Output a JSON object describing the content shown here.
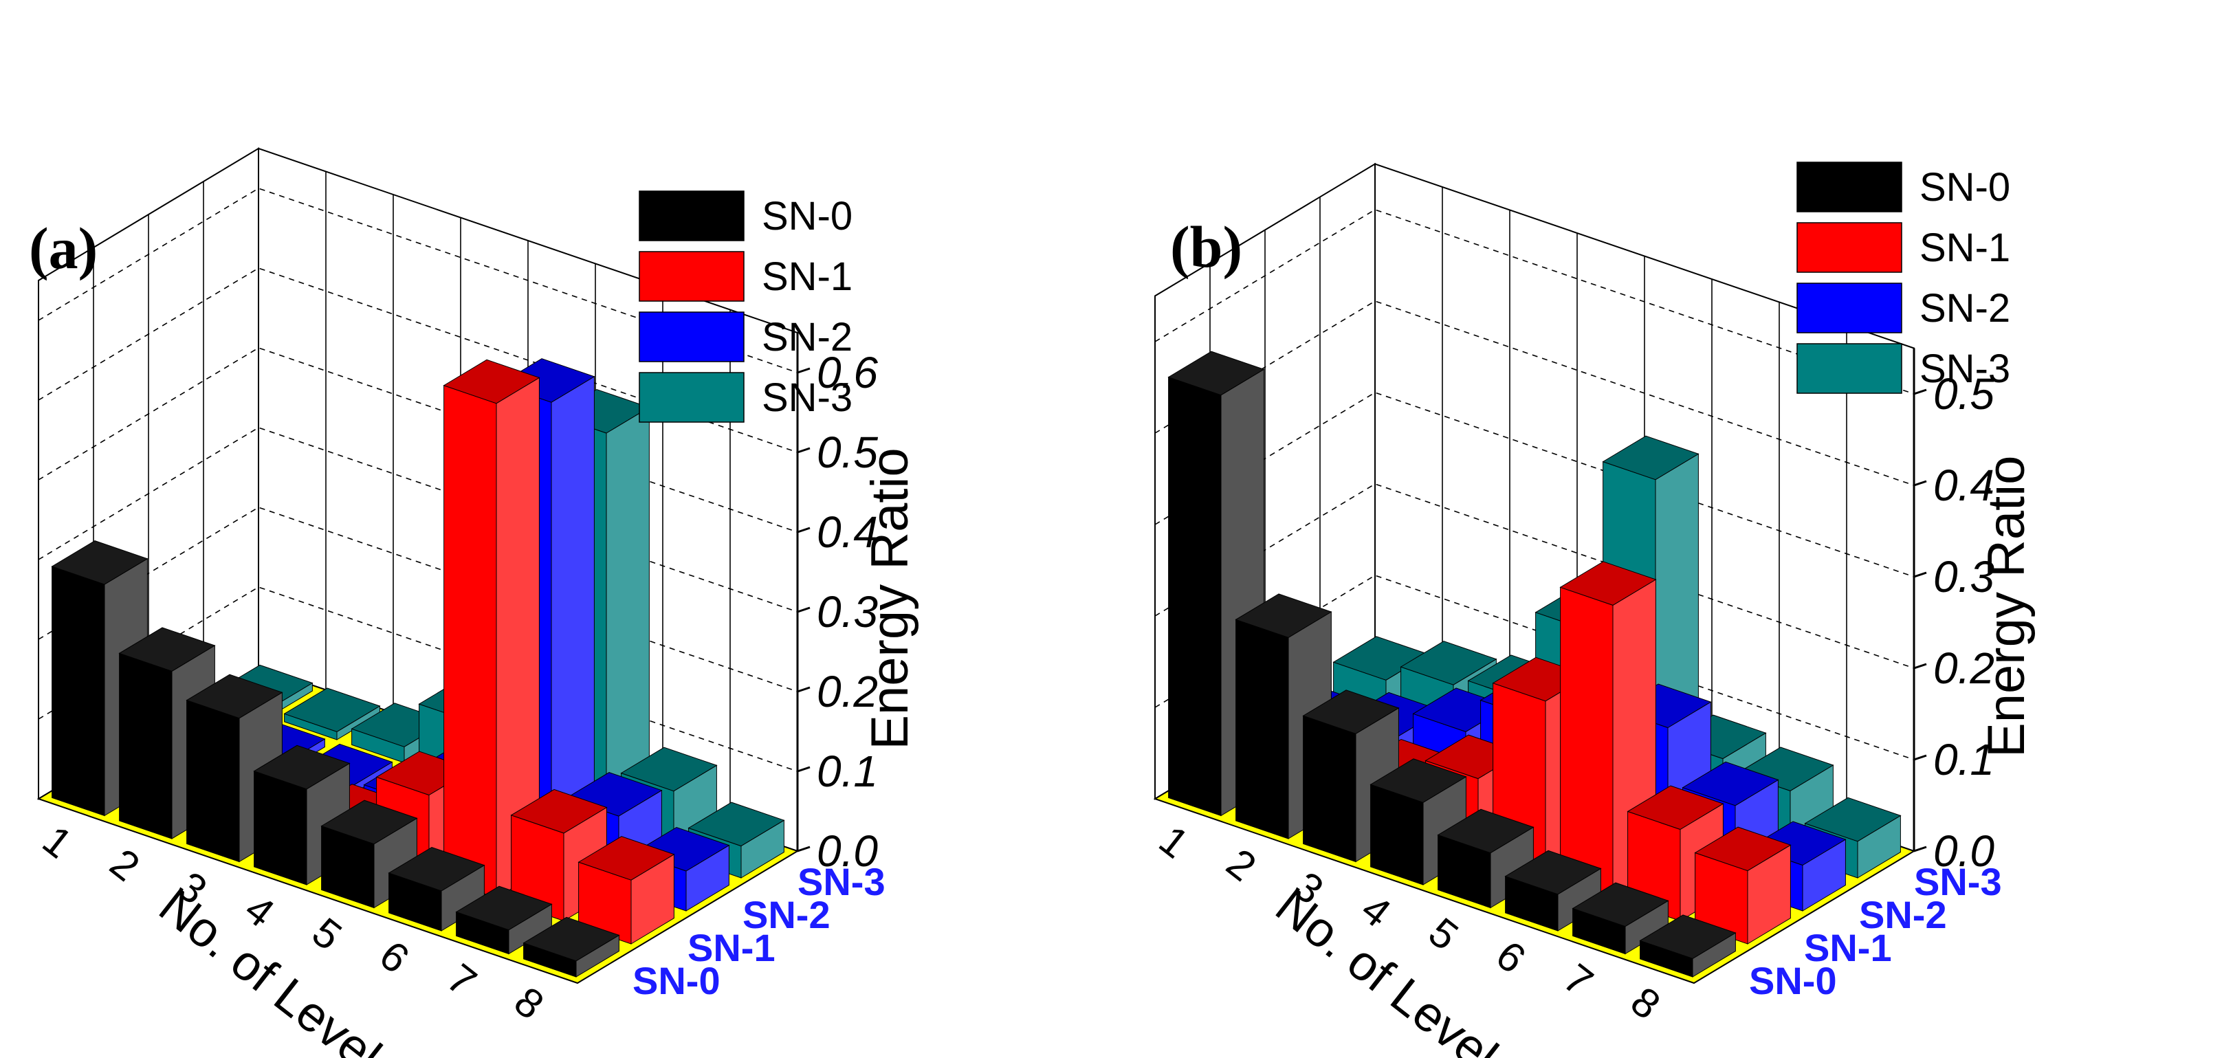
{
  "chart_data": [
    {
      "type": "bar3d",
      "panel_label": "(a)",
      "title": "",
      "xlabel": "No. of Level",
      "ylabel": "",
      "zlabel": "Energy Ratio",
      "x_categories": [
        "8",
        "7",
        "6",
        "5",
        "4",
        "3",
        "2",
        "1"
      ],
      "y_categories": [
        "SN-0",
        "SN-1",
        "SN-2",
        "SN-3"
      ],
      "zlim": [
        0,
        0.65
      ],
      "z_ticks": [
        "0.0",
        "0.1",
        "0.2",
        "0.3",
        "0.4",
        "0.5",
        "0.6"
      ],
      "floor_color": "#ffff00",
      "series": [
        {
          "name": "SN-0",
          "color": "#000000",
          "values": [
            0.02,
            0.03,
            0.05,
            0.08,
            0.12,
            0.18,
            0.21,
            0.29
          ]
        },
        {
          "name": "SN-1",
          "color": "#ff0000",
          "values": [
            0.08,
            0.11,
            0.62,
            0.1,
            0.03,
            0.02,
            0.01,
            0.01
          ]
        },
        {
          "name": "SN-2",
          "color": "#0000ff",
          "values": [
            0.05,
            0.09,
            0.58,
            0.08,
            0.02,
            0.01,
            0.01,
            0.01
          ]
        },
        {
          "name": "SN-3",
          "color": "#008080",
          "values": [
            0.04,
            0.08,
            0.5,
            0.28,
            0.08,
            0.02,
            0.01,
            0.01
          ]
        }
      ]
    },
    {
      "type": "bar3d",
      "panel_label": "(b)",
      "title": "",
      "xlabel": "No. of Level",
      "ylabel": "",
      "zlabel": "Energy Ratio",
      "x_categories": [
        "8",
        "7",
        "6",
        "5",
        "4",
        "3",
        "2",
        "1"
      ],
      "y_categories": [
        "SN-0",
        "SN-1",
        "SN-2",
        "SN-3"
      ],
      "zlim": [
        0,
        0.55
      ],
      "z_ticks": [
        "0.0",
        "0.1",
        "0.2",
        "0.3",
        "0.4",
        "0.5"
      ],
      "floor_color": "#ffff00",
      "series": [
        {
          "name": "SN-0",
          "color": "#000000",
          "values": [
            0.02,
            0.03,
            0.04,
            0.06,
            0.09,
            0.14,
            0.22,
            0.46
          ]
        },
        {
          "name": "SN-1",
          "color": "#ff0000",
          "values": [
            0.08,
            0.1,
            0.32,
            0.19,
            0.08,
            0.05,
            0.05,
            0.03
          ]
        },
        {
          "name": "SN-2",
          "color": "#0000ff",
          "values": [
            0.05,
            0.09,
            0.15,
            0.16,
            0.11,
            0.07,
            0.04,
            0.02
          ]
        },
        {
          "name": "SN-3",
          "color": "#008080",
          "values": [
            0.04,
            0.07,
            0.08,
            0.36,
            0.17,
            0.07,
            0.06,
            0.04
          ]
        }
      ]
    }
  ]
}
